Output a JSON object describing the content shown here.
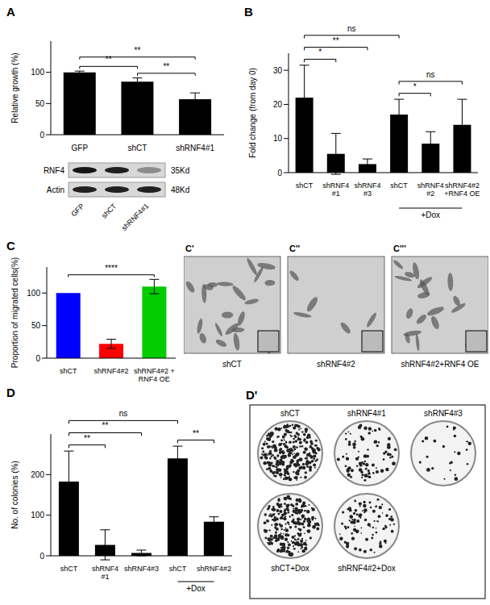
{
  "chart_data": [
    {
      "panel": "A",
      "type": "bar",
      "y_label": "Relative growth (%)",
      "categories": [
        "GFP",
        "shCT",
        "shRNF4#1"
      ],
      "values": [
        100,
        85,
        57
      ],
      "errors": [
        2,
        6,
        10
      ],
      "color": "#000000",
      "ylim": [
        0,
        150
      ],
      "yticks": [
        0,
        50,
        100
      ],
      "annotations": [
        {
          "from": 0,
          "to": 1,
          "text": "**"
        },
        {
          "from": 1,
          "to": 2,
          "text": "**"
        },
        {
          "from": 0,
          "to": 2,
          "text": "**"
        }
      ]
    },
    {
      "panel": "B",
      "type": "bar",
      "y_label": "Fold change (from day 0)",
      "categories": [
        "shCT",
        "shRNF4\n#1",
        "shRNF4\n#3",
        "shCT",
        "shRNF4\n#2",
        "shRNF4#2\n+RNF4 OE"
      ],
      "values": [
        22,
        5.5,
        2.5,
        17,
        8.5,
        14
      ],
      "errors": [
        9.5,
        6,
        1.5,
        4.5,
        3.5,
        7.5
      ],
      "color": "#000000",
      "ylim": [
        0,
        35
      ],
      "yticks": [
        0,
        10,
        20,
        30
      ],
      "annotations": [
        {
          "from": 0,
          "to": 1,
          "text": "*"
        },
        {
          "from": 0,
          "to": 2,
          "text": "**"
        },
        {
          "from": 0,
          "to": 3,
          "text": "ns"
        },
        {
          "from": 3,
          "to": 4,
          "text": "*"
        },
        {
          "from": 3,
          "to": 5,
          "text": "ns"
        }
      ],
      "group_labels": [
        {
          "from": 3,
          "to": 5,
          "text": "+Dox"
        }
      ]
    },
    {
      "panel": "C",
      "type": "bar",
      "y_label": "Proportion of migrated cells(%)",
      "categories": [
        "shCT",
        "shRNF4#2",
        "shRNF4#2 +\nRNF4 OE"
      ],
      "values": [
        100,
        22,
        110
      ],
      "errors": [
        0,
        7,
        11
      ],
      "colors": [
        "#0000ff",
        "#ff0000",
        "#00cc00"
      ],
      "ylim": [
        0,
        140
      ],
      "yticks": [
        0,
        50,
        100
      ],
      "annotations": [
        {
          "from": 0,
          "to": 2,
          "text": "****"
        }
      ]
    },
    {
      "panel": "D",
      "type": "bar",
      "y_label": "No. of colonies (%)",
      "categories": [
        "shCT",
        "shRNF4\n#1",
        "shRNF4#3",
        "shCT",
        "shRNF4#2"
      ],
      "values": [
        183,
        27,
        7,
        240,
        84
      ],
      "errors": [
        75,
        37,
        7,
        30,
        12
      ],
      "color": "#000000",
      "ylim": [
        0,
        300
      ],
      "yticks": [
        0,
        100,
        200
      ],
      "annotations": [
        {
          "from": 0,
          "to": 1,
          "text": "**"
        },
        {
          "from": 0,
          "to": 2,
          "text": "**"
        },
        {
          "from": 0,
          "to": 3,
          "text": "ns"
        },
        {
          "from": 3,
          "to": 4,
          "text": "**"
        }
      ],
      "group_labels": [
        {
          "from": 3,
          "to": 4,
          "text": "+Dox"
        }
      ]
    }
  ],
  "blot": {
    "rows": [
      {
        "label": "RNF4",
        "size": "35Kd"
      },
      {
        "label": "Actin",
        "size": "48Kd"
      }
    ],
    "lanes": [
      "GFP",
      "shCT",
      "shRNF4#1"
    ]
  },
  "micrographs": {
    "labels": [
      "C'",
      "C''",
      "C'''"
    ],
    "captions": [
      "shCT",
      "shRNF4#2",
      "shRNF4#2+RNF4 OE"
    ]
  },
  "plates": {
    "panel": "D'",
    "top_row": [
      "shCT",
      "shRNF4#1",
      "shRNF4#3"
    ],
    "bottom_row": [
      "shCT+Dox",
      "shRNF4#2+Dox"
    ]
  }
}
